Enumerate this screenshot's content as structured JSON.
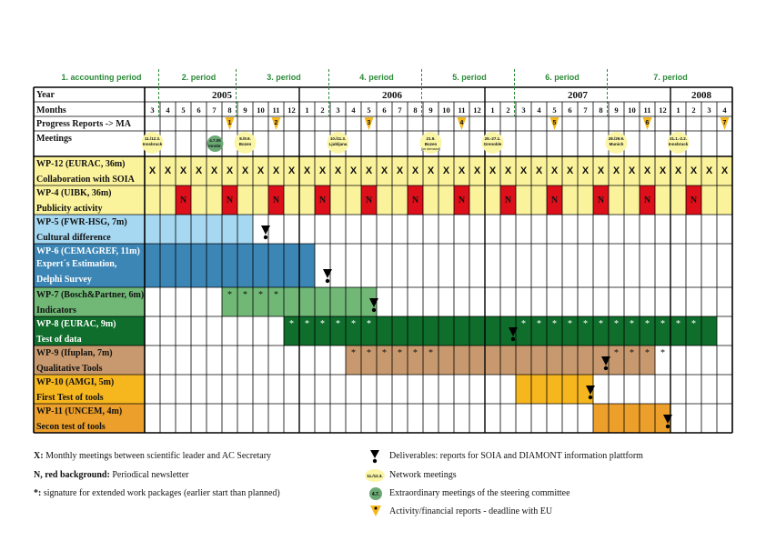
{
  "periods": [
    "1. accounting period",
    "2. period",
    "3. period",
    "4. period",
    "5. period",
    "6. period",
    "7. period"
  ],
  "headers": {
    "year": "Year",
    "months": "Months"
  },
  "years": [
    "2005",
    "2006",
    "2007",
    "2008"
  ],
  "months": [
    "3",
    "4",
    "5",
    "6",
    "7",
    "8",
    "9",
    "10",
    "11",
    "12",
    "1",
    "2",
    "3",
    "4",
    "5",
    "6",
    "7",
    "8",
    "9",
    "10",
    "11",
    "12",
    "1",
    "2",
    "3",
    "4",
    "5",
    "6",
    "7",
    "8",
    "9",
    "10",
    "11",
    "12",
    "1",
    "2",
    "3",
    "4"
  ],
  "progress": {
    "label": "Progress Reports -> MA",
    "markers": [
      "1",
      "2",
      "3",
      "4",
      "5",
      "6",
      "7"
    ]
  },
  "meetings": {
    "label": "Meetings",
    "network": [
      {
        "date": "11./12.3.",
        "place": "Innsbruck"
      },
      {
        "date": "8./9.9.",
        "place": "Bozen"
      },
      {
        "date": "10./11.3.",
        "place": "Ljubljana"
      },
      {
        "date": "21.9.",
        "place": "Bozen",
        "note": "(on demand)"
      },
      {
        "date": "25.-27.1.",
        "place": "Grenoble"
      },
      {
        "date": "28./29.9.",
        "place": "Munich"
      },
      {
        "date": "31.1.-2.2.",
        "place": "Innsbruck"
      }
    ],
    "extra": {
      "date": "4.7.05",
      "place": "Innsbr."
    }
  },
  "workpackages": [
    {
      "id": "WP-12 (EURAC, 36m)",
      "title": "Collaboration with SOIA"
    },
    {
      "id": "WP-4 (UIBK, 36m)",
      "title": "Publicity activity"
    },
    {
      "id": "WP-5 (FWR-HSG, 7m)",
      "title": "Cultural difference"
    },
    {
      "id": "WP-6 (CEMAGREF, 11m)",
      "title": "Expert´s Estimation, Delphi Survey"
    },
    {
      "id": "WP-7 (Bosch&Partner, 6m)",
      "title": "Indicators"
    },
    {
      "id": "WP-8 (EURAC, 9m)",
      "title": "Test of data"
    },
    {
      "id": "WP-9 (Ifuplan, 7m)",
      "title": "Qualitative Tools"
    },
    {
      "id": "WP-10 (AMGI, 5m)",
      "title": "First Test of tools"
    },
    {
      "id": "WP-11 (UNCEM, 4m)",
      "title": "Secon test of tools"
    }
  ],
  "cell_marks": {
    "monthly": "X",
    "newsletter": "N",
    "extended": "*"
  },
  "legend": {
    "x_key": "X:",
    "x_text": " Monthly meetings between scientific leader and AC Secretary",
    "n_key": "N, red background:",
    "n_text": " Periodical newsletter",
    "star_key": "*:",
    "star_text": " signature for extended work packages (earlier start than planned)",
    "deliverables": "Deliverables: reports for SOIA and DIAMONT information plattform",
    "network": "Network meetings",
    "network_icon": "11./12.3.",
    "extra": "Extraordinary meetings of the steering committee",
    "extra_icon": "4.7.",
    "activity": "Activity/financial reports - deadline with EU"
  },
  "colors": {
    "yellowRow": "#fbf39c",
    "red": "#dc0f1a",
    "lightBlue": "#a6d8f2",
    "blue": "#3c86b6",
    "lightGreen": "#71b877",
    "darkGreen": "#0f6e2b",
    "brown": "#c8996e",
    "orange": "#f6b61e",
    "darkOrange": "#ec9f2a",
    "periodGreen": "#2d8a3a",
    "meetingFill": "#fbf6a6",
    "extraFill": "#6aa874",
    "triangle": "#f5b81c",
    "grey": "#cfcfcf"
  }
}
